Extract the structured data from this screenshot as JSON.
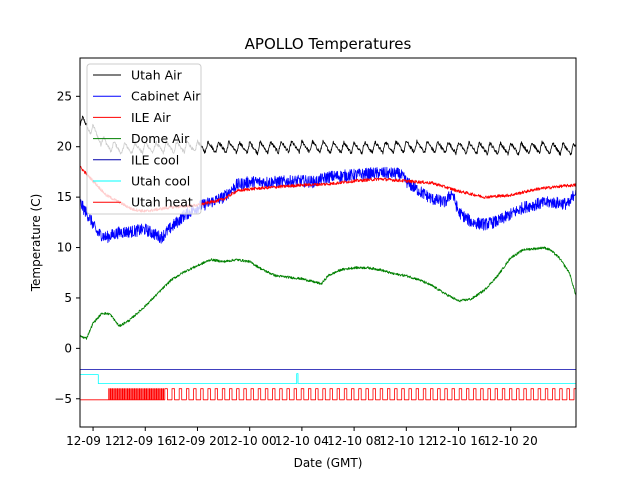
{
  "chart_data": {
    "type": "line",
    "title": "APOLLO Temperatures",
    "xlabel": "Date (GMT)",
    "ylabel": "Temperature (C)",
    "xlim": [
      9.0,
      47.0
    ],
    "ylim": [
      -7.8,
      28.8
    ],
    "x_unit": "hours since 12-09 00:00 GMT",
    "xticks": [
      {
        "x": 10,
        "label": "12-09 12"
      },
      {
        "x": 14,
        "label": "12-09 16"
      },
      {
        "x": 18,
        "label": "12-09 20"
      },
      {
        "x": 22,
        "label": "12-10 00"
      },
      {
        "x": 26,
        "label": "12-10 04"
      },
      {
        "x": 30,
        "label": "12-10 08"
      },
      {
        "x": 34,
        "label": "12-10 12"
      },
      {
        "x": 38,
        "label": "12-10 16"
      },
      {
        "x": 42,
        "label": "12-10 20"
      }
    ],
    "yticks": [
      {
        "y": -5,
        "label": "−5"
      },
      {
        "y": 0,
        "label": "0"
      },
      {
        "y": 5,
        "label": "5"
      },
      {
        "y": 10,
        "label": "10"
      },
      {
        "y": 15,
        "label": "15"
      },
      {
        "y": 20,
        "label": "20"
      },
      {
        "y": 25,
        "label": "25"
      }
    ],
    "legend": "upper-left",
    "series": [
      {
        "name": "Utah Air",
        "color": "#000000",
        "style": "sawtooth",
        "x": [
          9.0,
          10.0,
          11.0,
          12.0,
          14.0,
          18.0,
          22.0,
          26.0,
          30.0,
          34.0,
          38.0,
          42.0,
          44.0,
          46.0,
          47.0
        ],
        "y": [
          22.6,
          21.6,
          20.2,
          19.8,
          19.9,
          20.0,
          19.9,
          20.0,
          19.9,
          20.0,
          19.9,
          19.8,
          19.9,
          19.8,
          19.7
        ],
        "amp": 0.7,
        "period": 0.8
      },
      {
        "name": "Cabinet Air",
        "color": "#0000ff",
        "style": "noisy",
        "x": [
          9.0,
          9.3,
          9.8,
          10.3,
          11.0,
          12.0,
          13.0,
          14.0,
          15.2,
          16.0,
          17.0,
          18.0,
          19.0,
          20.0,
          21.0,
          22.0,
          24.0,
          26.0,
          27.0,
          28.0,
          30.0,
          32.0,
          33.5,
          34.2,
          35.0,
          36.0,
          37.0,
          37.5,
          38.0,
          39.0,
          40.0,
          41.0,
          42.0,
          43.0,
          44.0,
          45.0,
          46.5,
          47.0
        ],
        "y": [
          14.5,
          13.8,
          12.8,
          11.5,
          11.0,
          11.5,
          11.6,
          11.8,
          11.0,
          12.0,
          13.2,
          14.0,
          14.5,
          15.0,
          16.2,
          16.5,
          16.5,
          16.6,
          16.5,
          17.0,
          17.2,
          17.4,
          17.3,
          16.3,
          15.6,
          14.8,
          14.5,
          15.5,
          13.5,
          12.5,
          12.3,
          12.6,
          13.3,
          14.0,
          14.3,
          14.5,
          14.3,
          15.8
        ],
        "noise": 0.6
      },
      {
        "name": "ILE Air",
        "color": "#ff0000",
        "style": "noisy",
        "x": [
          9.0,
          10.0,
          11.0,
          12.0,
          13.0,
          14.0,
          16.0,
          18.0,
          20.0,
          21.0,
          22.0,
          24.0,
          26.0,
          28.0,
          30.0,
          32.0,
          34.0,
          36.0,
          38.0,
          40.0,
          42.0,
          44.0,
          46.0,
          47.0
        ],
        "y": [
          18.0,
          16.6,
          15.2,
          14.5,
          13.8,
          13.6,
          14.0,
          14.2,
          14.8,
          15.6,
          15.8,
          16.0,
          16.2,
          16.3,
          16.6,
          16.8,
          16.6,
          16.4,
          15.6,
          15.0,
          15.2,
          15.8,
          16.1,
          16.2
        ],
        "noise": 0.15
      },
      {
        "name": "Dome Air",
        "color": "#008000",
        "style": "noisy",
        "x": [
          9.0,
          9.5,
          10.0,
          10.7,
          11.3,
          12.0,
          12.8,
          14.0,
          15.0,
          16.0,
          17.0,
          18.0,
          19.0,
          20.0,
          21.0,
          22.0,
          23.0,
          24.0,
          26.0,
          27.5,
          28.0,
          29.0,
          30.0,
          31.0,
          32.0,
          33.0,
          34.0,
          35.0,
          36.0,
          37.0,
          38.0,
          39.0,
          40.0,
          41.0,
          42.0,
          43.0,
          44.0,
          44.5,
          45.0,
          45.7,
          46.5,
          47.0
        ],
        "y": [
          1.2,
          1.0,
          2.5,
          3.5,
          3.4,
          2.2,
          2.8,
          4.2,
          5.5,
          6.8,
          7.6,
          8.2,
          8.8,
          8.6,
          8.8,
          8.6,
          7.8,
          7.2,
          6.9,
          6.4,
          7.2,
          7.8,
          8.0,
          8.0,
          7.8,
          7.4,
          7.2,
          6.8,
          6.2,
          5.4,
          4.7,
          4.9,
          5.8,
          7.2,
          9.0,
          9.8,
          9.9,
          10.0,
          9.8,
          9.0,
          7.5,
          5.2
        ],
        "noise": 0.12
      },
      {
        "name": "ILE cool",
        "color": "#0000aa",
        "style": "flat",
        "x": [
          9.0,
          47.0
        ],
        "y": [
          -2.1,
          -2.1
        ]
      },
      {
        "name": "Utah cool",
        "color": "#00ffff",
        "style": "step",
        "x": [
          9.0,
          10.4,
          10.4,
          25.6,
          25.6,
          25.7,
          25.7,
          47.0
        ],
        "y": [
          -2.6,
          -2.6,
          -3.5,
          -3.5,
          -2.5,
          -2.5,
          -3.5,
          -3.5
        ]
      },
      {
        "name": "Utah heat",
        "color": "#ff0000",
        "style": "pulses",
        "base": -5.1,
        "high": -4.0,
        "dense_segments": [
          {
            "from": 11.2,
            "to": 15.4,
            "period": 0.13
          }
        ],
        "pulse_segments": [
          {
            "from": 15.5,
            "to": 47.0,
            "period": 0.55
          }
        ]
      }
    ]
  }
}
